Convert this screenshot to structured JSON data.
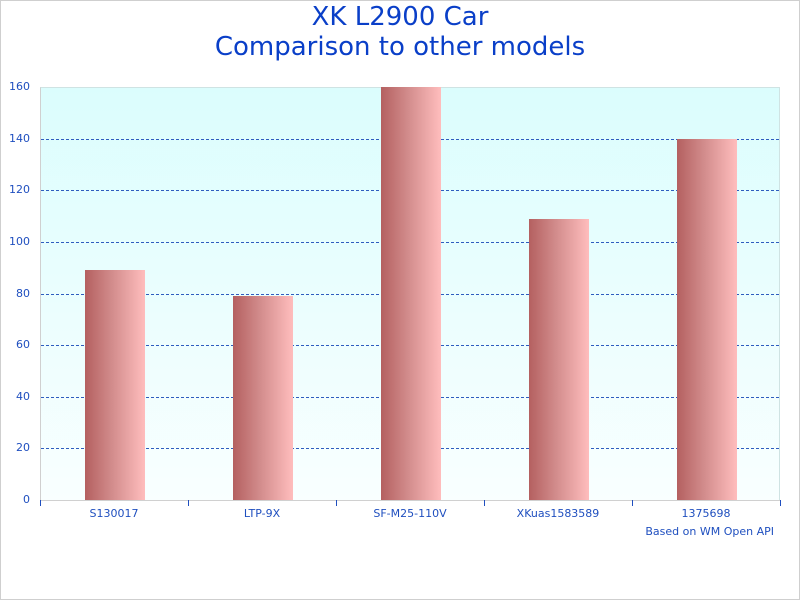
{
  "chart_data": {
    "type": "bar",
    "title": "XK L2900 Car",
    "subtitle": "Comparison to other models",
    "categories": [
      "S130017",
      "LTP-9X",
      "SF-M25-110V",
      "XKuas1583589",
      "1375698"
    ],
    "values": [
      89,
      79,
      160,
      109,
      140
    ],
    "xlabel": "",
    "ylabel": "",
    "ylim": [
      0,
      160
    ],
    "yticks": [
      0,
      20,
      40,
      60,
      80,
      100,
      120,
      140,
      160
    ],
    "grid": true,
    "legend": null,
    "annotation": "Based on WM Open API"
  },
  "colors": {
    "title": "#0a3fc8",
    "axis_text": "#1f4fbf",
    "grid": "#2e5dbf",
    "bar_dark": "#b46060",
    "bar_light": "#ffbdbd",
    "plot_bg_top": "#dbfdfd",
    "plot_bg_bottom": "#f9ffff"
  }
}
